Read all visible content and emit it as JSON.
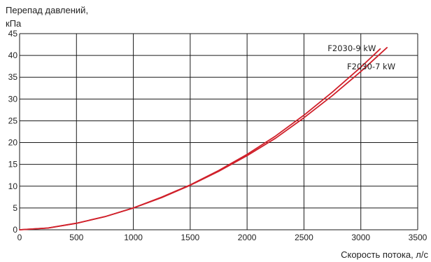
{
  "chart_data": {
    "type": "line",
    "title": "",
    "ylabel": "Перепад давлений, кПа",
    "xlabel": "Скорость потока, л/с",
    "xlim": [
      0,
      3500
    ],
    "ylim": [
      0,
      45
    ],
    "xticks": [
      0,
      500,
      1000,
      1500,
      2000,
      2500,
      3000,
      3500
    ],
    "yticks": [
      0,
      5,
      10,
      15,
      20,
      25,
      30,
      35,
      40,
      45
    ],
    "grid": true,
    "series_color": "#d0202a",
    "series": [
      {
        "name": "F2030-9 kW",
        "x": [
          0,
          250,
          500,
          750,
          1000,
          1250,
          1500,
          1750,
          2000,
          2250,
          2500,
          2750,
          3000,
          3170
        ],
        "y": [
          0,
          0.4,
          1.5,
          3.0,
          5.0,
          7.5,
          10.3,
          13.6,
          17.3,
          21.5,
          26.3,
          31.6,
          37.3,
          41.5
        ]
      },
      {
        "name": "F2030-7 kW",
        "x": [
          0,
          250,
          500,
          750,
          1000,
          1250,
          1500,
          1750,
          2000,
          2250,
          2500,
          2750,
          3000,
          3230
        ],
        "y": [
          0,
          0.4,
          1.5,
          3.0,
          5.0,
          7.4,
          10.2,
          13.4,
          17.0,
          21.0,
          25.7,
          30.8,
          36.3,
          41.8
        ]
      }
    ]
  }
}
